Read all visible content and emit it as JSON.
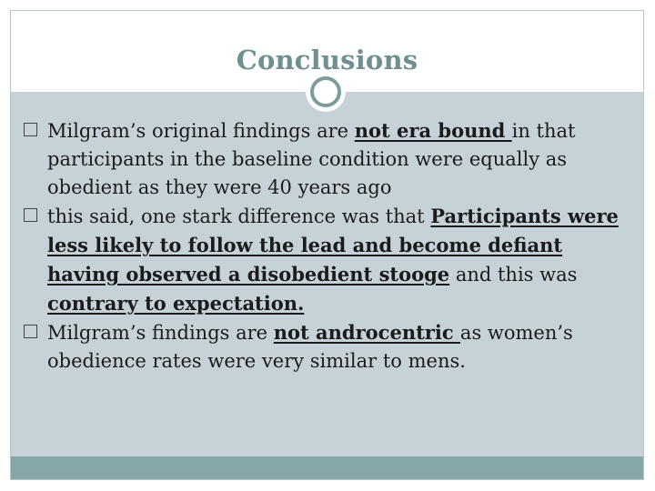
{
  "slide": {
    "title": "Conclusions",
    "bullets": [
      {
        "parts": [
          {
            "text": "Milgram’s original findings are ",
            "emph": false
          },
          {
            "text": "not era bound ",
            "emph": true
          },
          {
            "text": "in that participants in the baseline condition were equally as obedient as they were 40 years ago",
            "emph": false
          }
        ]
      },
      {
        "parts": [
          {
            "text": "this said, one stark difference was that ",
            "emph": false
          },
          {
            "text": "Participants were less likely to follow the lead and become defiant having observed a disobedient stooge",
            "emph": true
          },
          {
            "text": " and this was ",
            "emph": false
          },
          {
            "text": "contrary to expectation.",
            "emph": true
          }
        ]
      },
      {
        "parts": [
          {
            "text": "Milgram’s findings are ",
            "emph": false
          },
          {
            "text": "not androcentric ",
            "emph": true
          },
          {
            "text": "as women’s obedience rates were very similar to mens.",
            "emph": false
          }
        ]
      }
    ]
  },
  "theme": {
    "title_color": "#6f8f90",
    "content_bg": "#c7d1d8",
    "footer_color": "#86a6a7",
    "ring_color": "#7e9c9e"
  }
}
